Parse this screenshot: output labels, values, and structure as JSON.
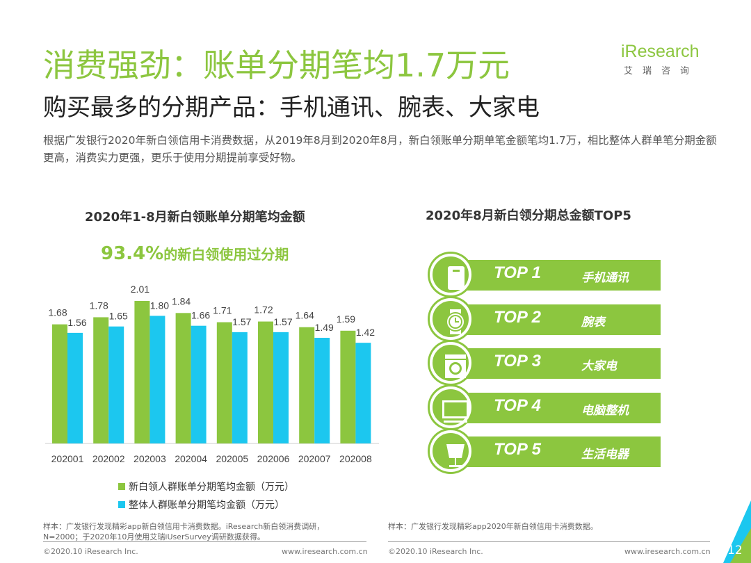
{
  "title": "消费强劲：账单分期笔均1.7万元",
  "subtitle": "购买最多的分期产品：手机通讯、腕表、大家电",
  "description": "根据广发银行2020年新白领信用卡消费数据，从2019年8月到2020年8月，新白领账单分期单笔金额笔均1.7万，相比整体人群单笔分期金额更高，消费实力更强，更乐于使用分期提前享受好物。",
  "logo": {
    "brand": "iResearch",
    "cn": "艾瑞咨询"
  },
  "highlight": {
    "value": "93.4%",
    "text": "的新白领使用过分期"
  },
  "chart_data": [
    {
      "type": "bar",
      "title": "2020年1-8月新白领账单分期笔均金额",
      "categories": [
        "202001",
        "202002",
        "202003",
        "202004",
        "202005",
        "202006",
        "202007",
        "202008"
      ],
      "series": [
        {
          "name": "新白领人群账单分期笔均金额（万元）",
          "color": "#8cc63f",
          "values": [
            1.68,
            1.78,
            2.01,
            1.84,
            1.71,
            1.72,
            1.64,
            1.59
          ]
        },
        {
          "name": "整体人群账单分期笔均金额（万元）",
          "color": "#1cc7ef",
          "values": [
            1.56,
            1.65,
            1.8,
            1.66,
            1.57,
            1.57,
            1.49,
            1.42
          ]
        }
      ],
      "ylim": [
        0,
        2.2
      ],
      "grid": false,
      "legend": "bottom"
    },
    {
      "type": "table",
      "title": "2020年8月新白领分期总金额TOP5",
      "rows": [
        {
          "rank": "TOP 1",
          "name": "手机通讯",
          "icon": "phone-icon"
        },
        {
          "rank": "TOP 2",
          "name": "腕表",
          "icon": "watch-icon"
        },
        {
          "rank": "TOP 3",
          "name": "大家电",
          "icon": "washing-machine-icon"
        },
        {
          "rank": "TOP 4",
          "name": "电脑整机",
          "icon": "monitor-icon"
        },
        {
          "rank": "TOP 5",
          "name": "生活电器",
          "icon": "lamp-icon"
        }
      ]
    }
  ],
  "notes": {
    "left": "样本：广发银行发现精彩app新白领信用卡消费数据。iResearch新白领消费调研，N=2000；于2020年10月使用艾瑞iUserSurvey调研数据获得。",
    "right": "样本：广发银行发现精彩app2020年新白领信用卡消费数据。"
  },
  "footer": {
    "copyright": "©2020.10 iResearch Inc.",
    "url": "www.iresearch.com.cn",
    "page": "12"
  },
  "colors": {
    "accent": "#8cc63f",
    "secondary": "#1cc7ef"
  }
}
